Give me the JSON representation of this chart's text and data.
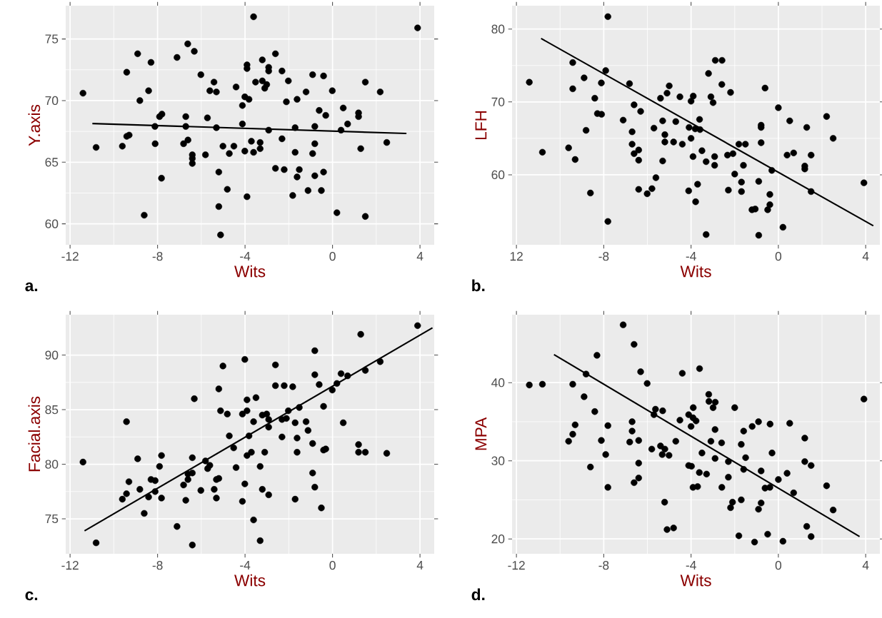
{
  "chart_data": [
    {
      "type": "scatter",
      "xlabel": "Wits",
      "ylabel": "Y.axis",
      "annotations": [
        "a."
      ],
      "xlim": [
        -12.2,
        4.65
      ],
      "ylim": [
        58.3,
        77.7
      ],
      "xticks": [
        -12,
        -8,
        -4,
        0,
        4
      ],
      "yticks": [
        60,
        65,
        70,
        75
      ],
      "grid": true,
      "series": [
        {
          "marker": "circle",
          "color": "#000000",
          "x": [
            -3.61,
            3.89,
            -6.62,
            -6.32,
            -8.91,
            -7.11,
            -8.3,
            -2.61,
            -3.21,
            -3.91,
            -3.91,
            -2.92,
            -2.92,
            -2.31,
            -9.41,
            -6.02,
            -0.91,
            -0.41,
            -5.42,
            -3.52,
            -3.21,
            -3.01,
            -3.1,
            -2.02,
            1.5,
            -4.41,
            -5.61,
            -5.31,
            -8.41,
            -11.41,
            -1.21,
            -0.01,
            2.18,
            -8.81,
            -4.01,
            -3.82,
            -2.11,
            -1.62,
            -4.12,
            -0.61,
            0.49,
            -0.31,
            1.19,
            1.19,
            -7.8,
            -7.91,
            -6.71,
            -5.72,
            0.69,
            -8.12,
            -6.71,
            -5.31,
            -4.12,
            -2.92,
            -1.71,
            -0.81,
            0.39,
            -9.3,
            -9.41,
            -10.81,
            -9.61,
            -8.11,
            -6.81,
            -6.61,
            -5.01,
            -4.51,
            -3.71,
            -3.31,
            -3.31,
            -2.31,
            -0.81,
            2.48,
            1.29,
            -6.41,
            -6.41,
            -6.41,
            -5.81,
            -4.72,
            -4.01,
            -3.61,
            -1.71,
            -0.91,
            -5.2,
            -2.61,
            -2.21,
            -1.52,
            -1.62,
            -0.81,
            -0.41,
            -7.82,
            -4.81,
            -3.91,
            -1.82,
            -1.12,
            -0.51,
            -5.2,
            0.2,
            1.5,
            -8.61,
            -5.12
          ],
          "values": [
            76.8,
            75.9,
            74.6,
            74.0,
            73.8,
            73.5,
            73.1,
            73.8,
            73.3,
            72.9,
            72.6,
            72.7,
            72.4,
            72.4,
            72.3,
            72.1,
            72.1,
            72.0,
            71.5,
            71.5,
            71.6,
            71.3,
            71.0,
            71.6,
            71.5,
            71.1,
            70.8,
            70.7,
            70.8,
            70.6,
            70.7,
            70.8,
            70.7,
            70.0,
            70.3,
            70.1,
            69.9,
            70.1,
            69.6,
            69.2,
            69.4,
            68.8,
            69.0,
            68.7,
            68.9,
            68.7,
            68.7,
            68.6,
            68.1,
            67.9,
            67.9,
            67.8,
            68.1,
            67.6,
            67.8,
            67.9,
            67.6,
            67.2,
            67.1,
            66.2,
            66.3,
            66.5,
            66.5,
            66.8,
            66.3,
            66.3,
            66.7,
            66.6,
            66.1,
            66.9,
            66.5,
            66.6,
            66.1,
            65.6,
            65.3,
            64.9,
            65.6,
            65.7,
            65.9,
            65.8,
            65.8,
            65.7,
            64.2,
            64.5,
            64.4,
            64.4,
            63.8,
            63.9,
            64.2,
            63.7,
            62.8,
            62.2,
            62.3,
            62.7,
            62.7,
            61.4,
            60.9,
            60.6,
            60.7,
            59.1
          ]
        },
        {
          "type": "line",
          "marker": "none",
          "color": "#000000",
          "x": [
            -10.98,
            3.38
          ],
          "values": [
            68.14,
            67.33
          ]
        }
      ]
    },
    {
      "type": "scatter",
      "xlabel": "Wits",
      "ylabel": "LFH",
      "annotations": [
        "b."
      ],
      "xlim": [
        -12.2,
        4.65
      ],
      "ylim": [
        50.4,
        83.2
      ],
      "xticks": [
        {
          "value": -12,
          "label": "12"
        },
        -8,
        -4,
        0,
        4
      ],
      "yticks": [
        60,
        70,
        80
      ],
      "grid": true,
      "series": [
        {
          "marker": "circle",
          "color": "#000000",
          "x": [
            -7.81,
            -11.41,
            -9.42,
            -9.42,
            -8.9,
            -7.91,
            -8.11,
            -6.82,
            -8.41,
            -8.29,
            -8.1,
            -8.81,
            -10.81,
            -9.61,
            -9.31,
            -8.61,
            -7.81,
            -6.61,
            -6.31,
            -7.11,
            -6.7,
            -6.7,
            -6.61,
            -6.4,
            -6.4,
            -6.4,
            -6.01,
            -5.79,
            -5.61,
            -5.7,
            -5.3,
            -5.2,
            -5.2,
            -4.8,
            -4.4,
            -5.3,
            -5.4,
            -5.1,
            -5.0,
            -4.51,
            -4.7,
            -4.0,
            -3.9,
            -4.09,
            -3.81,
            -3.59,
            -3.61,
            -4.0,
            -3.91,
            -3.5,
            -4.11,
            -3.7,
            -3.79,
            -3.31,
            -3.2,
            -2.89,
            -2.58,
            -2.59,
            -2.19,
            -3.09,
            -2.99,
            -3.31,
            -2.92,
            -2.92,
            -2.33,
            -2.08,
            -1.81,
            -1.51,
            -1.6,
            -2.0,
            -1.69,
            -2.29,
            -1.69,
            -0.9,
            -1.21,
            -1.06,
            -0.9,
            -0.79,
            -0.79,
            -0.79,
            -0.61,
            -0.3,
            -0.39,
            -0.39,
            -0.49,
            0.0,
            0.52,
            0.4,
            0.7,
            0.21,
            1.3,
            1.5,
            1.21,
            1.21,
            1.5,
            2.21,
            2.51,
            3.92
          ],
          "values": [
            81.7,
            72.7,
            75.4,
            71.8,
            73.3,
            74.3,
            72.6,
            72.5,
            70.5,
            68.4,
            68.3,
            66.1,
            63.1,
            63.7,
            62.1,
            57.5,
            53.6,
            69.6,
            68.7,
            67.5,
            65.9,
            64.2,
            62.9,
            63.4,
            62.0,
            58.0,
            57.4,
            58.1,
            59.6,
            66.4,
            67.4,
            65.5,
            64.5,
            64.5,
            64.2,
            61.9,
            70.5,
            71.2,
            72.2,
            70.7,
            67.3,
            70.1,
            70.8,
            66.5,
            66.3,
            66.2,
            67.6,
            65.0,
            62.5,
            63.3,
            57.8,
            58.7,
            56.3,
            51.8,
            73.9,
            75.7,
            75.7,
            72.4,
            71.3,
            70.7,
            69.9,
            61.8,
            62.5,
            61.3,
            62.7,
            62.9,
            64.2,
            64.2,
            61.3,
            60.1,
            59.0,
            57.9,
            57.7,
            59.1,
            55.2,
            55.3,
            51.7,
            66.8,
            66.5,
            64.4,
            71.9,
            60.6,
            57.3,
            55.9,
            55.2,
            69.2,
            67.4,
            62.7,
            63.0,
            52.8,
            66.5,
            62.7,
            61.2,
            60.8,
            57.7,
            68.0,
            65.0,
            58.9
          ]
        },
        {
          "type": "line",
          "marker": "none",
          "color": "#000000",
          "x": [
            -10.87,
            4.35
          ],
          "values": [
            78.7,
            53.0
          ]
        }
      ]
    },
    {
      "type": "scatter",
      "xlabel": "Wits",
      "ylabel": "Facial.axis",
      "annotations": [
        "c."
      ],
      "xlim": [
        -12.2,
        4.65
      ],
      "ylim": [
        71.8,
        93.7
      ],
      "xticks": [
        -12,
        -8,
        -4,
        0,
        4
      ],
      "yticks": [
        75,
        80,
        85,
        90
      ],
      "grid": true,
      "series": [
        {
          "marker": "circle",
          "color": "#000000",
          "x": [
            3.89,
            1.29,
            -0.81,
            -4.01,
            -5.01,
            -2.61,
            -0.81,
            -0.61,
            -2.61,
            -2.21,
            -1.82,
            -5.2,
            -6.32,
            -3.91,
            -3.5,
            0.39,
            0.69,
            0.2,
            -0.01,
            1.5,
            2.18,
            -5.12,
            -4.81,
            -4.12,
            -3.91,
            -3.21,
            -3.01,
            -2.92,
            -2.92,
            -2.31,
            -2.11,
            -2.02,
            -1.52,
            -0.41,
            -1.71,
            -1.21,
            -1.12,
            0.49,
            -3.61,
            -4.72,
            -3.82,
            -2.31,
            -1.62,
            -0.91,
            -0.41,
            -0.31,
            1.19,
            1.19,
            1.5,
            2.48,
            -9.42,
            -11.41,
            -8.91,
            -7.82,
            -7.91,
            -6.41,
            -5.81,
            -5.61,
            -5.71,
            -4.52,
            -3.91,
            -3.71,
            -3.1,
            -1.62,
            -4.41,
            -3.31,
            -0.91,
            -0.81,
            -0.51,
            -9.31,
            -8.3,
            -8.11,
            -8.81,
            -9.42,
            -9.61,
            -8.41,
            -8.11,
            -7.82,
            -6.61,
            -6.41,
            -6.61,
            -6.81,
            -6.71,
            -6.02,
            -5.31,
            -5.2,
            -5.41,
            -5.31,
            -4.01,
            -3.21,
            -2.92,
            -4.12,
            -1.71,
            -3.61,
            -3.31,
            -8.61,
            -7.11,
            -10.81,
            -6.41
          ],
          "values": [
            92.7,
            91.9,
            90.4,
            89.6,
            89.0,
            89.1,
            88.2,
            87.3,
            87.2,
            87.2,
            87.1,
            86.9,
            86.0,
            85.9,
            86.1,
            88.3,
            88.1,
            87.4,
            86.8,
            88.6,
            89.4,
            84.9,
            84.6,
            84.6,
            84.9,
            84.5,
            84.6,
            84.1,
            83.4,
            84.1,
            84.2,
            84.9,
            85.2,
            85.3,
            83.8,
            83.9,
            83.1,
            83.8,
            83.9,
            82.6,
            82.6,
            82.5,
            82.4,
            81.9,
            81.3,
            81.4,
            81.8,
            81.1,
            81.1,
            81.0,
            83.9,
            80.2,
            80.5,
            80.8,
            79.8,
            80.6,
            80.3,
            79.9,
            79.6,
            81.5,
            80.8,
            81.1,
            81.1,
            81.1,
            79.7,
            79.8,
            79.2,
            77.9,
            76.0,
            78.4,
            78.6,
            78.5,
            77.7,
            77.3,
            76.8,
            77.0,
            77.5,
            76.9,
            79.1,
            79.2,
            78.6,
            78.1,
            76.7,
            77.6,
            78.6,
            78.7,
            77.7,
            76.9,
            78.2,
            77.7,
            77.2,
            76.6,
            76.8,
            74.9,
            73.0,
            75.5,
            74.3,
            72.8,
            72.6
          ]
        },
        {
          "type": "line",
          "marker": "none",
          "color": "#000000",
          "x": [
            -11.34,
            4.57
          ],
          "values": [
            73.9,
            92.5
          ]
        }
      ]
    },
    {
      "type": "scatter",
      "xlabel": "Wits",
      "ylabel": "MPA",
      "annotations": [
        "d."
      ],
      "xlim": [
        -12.2,
        4.65
      ],
      "ylim": [
        18.1,
        48.7
      ],
      "xticks": [
        -12,
        -8,
        -4,
        0,
        4
      ],
      "yticks": [
        20,
        30,
        40
      ],
      "grid": true,
      "series": [
        {
          "marker": "circle",
          "color": "#000000",
          "x": [
            -7.11,
            -6.61,
            -8.31,
            -6.31,
            -4.4,
            -3.61,
            -8.81,
            -11.41,
            -10.81,
            -9.42,
            -6.01,
            -8.9,
            -8.41,
            -9.31,
            -9.42,
            -9.61,
            -8.11,
            -7.81,
            -7.91,
            -8.61,
            -7.81,
            -6.7,
            -6.7,
            -6.81,
            -6.4,
            -6.4,
            -6.4,
            -6.61,
            -5.63,
            -5.3,
            -5.7,
            -5.4,
            -5.2,
            -5.32,
            -5.01,
            -5.8,
            -4.7,
            -5.21,
            -5.1,
            -4.8,
            -4.51,
            -4.11,
            -3.9,
            -3.91,
            -3.77,
            -4.0,
            -3.5,
            -4.11,
            -3.98,
            -3.62,
            -3.29,
            -3.91,
            -3.7,
            -3.19,
            -3.18,
            -2.89,
            -2.99,
            -2.9,
            -3.09,
            -2.6,
            -2.9,
            -2.59,
            -2.0,
            -2.29,
            -2.29,
            -2.1,
            -2.19,
            -1.7,
            -1.59,
            -1.2,
            -0.91,
            -1.5,
            -1.59,
            -1.7,
            -1.81,
            -1.09,
            -0.38,
            -0.79,
            -0.61,
            -0.39,
            -0.29,
            -0.79,
            -0.91,
            -0.49,
            0.21,
            0.0,
            0.4,
            0.7,
            0.52,
            1.21,
            1.21,
            1.5,
            1.3,
            1.5,
            2.21,
            2.51,
            3.92
          ],
          "values": [
            47.4,
            44.9,
            43.5,
            41.4,
            41.2,
            41.8,
            41.1,
            39.7,
            39.8,
            39.8,
            39.9,
            38.2,
            36.3,
            34.6,
            33.4,
            32.5,
            32.6,
            34.5,
            30.8,
            29.2,
            26.6,
            35.0,
            33.8,
            32.4,
            32.6,
            29.7,
            27.8,
            27.2,
            36.6,
            36.4,
            35.9,
            31.9,
            31.5,
            30.8,
            30.7,
            31.5,
            32.5,
            24.7,
            21.2,
            21.4,
            35.2,
            35.9,
            36.8,
            35.5,
            35.1,
            34.4,
            31.0,
            29.4,
            29.3,
            28.5,
            28.3,
            26.6,
            26.7,
            38.5,
            37.6,
            37.5,
            36.8,
            34.0,
            32.5,
            32.3,
            30.3,
            26.6,
            36.8,
            29.9,
            27.9,
            24.7,
            24.0,
            32.1,
            33.8,
            34.4,
            35.0,
            30.4,
            28.9,
            25.0,
            20.4,
            19.6,
            34.7,
            28.7,
            26.5,
            26.6,
            31.0,
            24.6,
            23.8,
            20.6,
            19.7,
            27.6,
            28.4,
            25.9,
            34.8,
            32.9,
            29.9,
            29.4,
            21.6,
            20.3,
            26.8,
            23.7,
            37.9
          ]
        },
        {
          "type": "line",
          "marker": "none",
          "color": "#000000",
          "x": [
            -10.28,
            3.72
          ],
          "values": [
            43.6,
            20.3
          ]
        }
      ]
    }
  ]
}
